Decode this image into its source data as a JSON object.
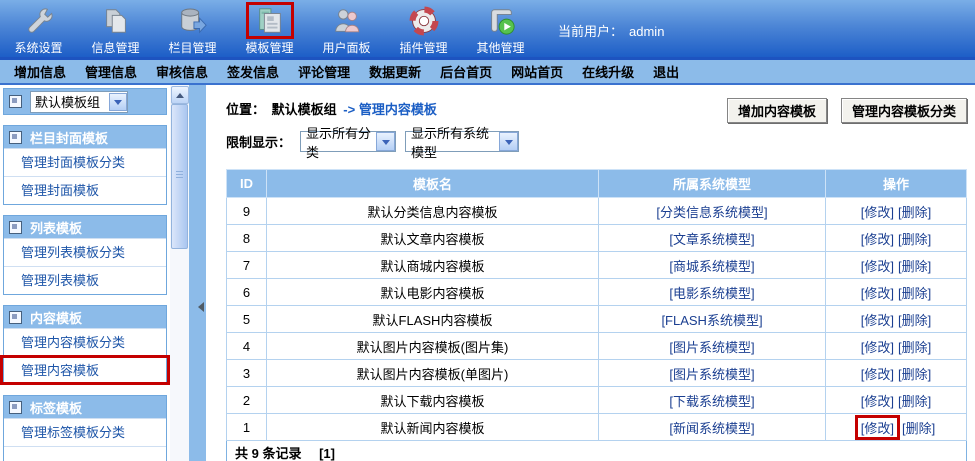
{
  "colors": {
    "accent_red": "#C40000",
    "panel_blue": "#8CBBE9",
    "link_blue": "#1B3F91",
    "crumb_link_blue": "#1B5EC4",
    "header_top": "#7AAEE7",
    "header_bottom": "#1D5EC7"
  },
  "header": {
    "current_user_label": "当前用户：",
    "current_user": "admin",
    "toolbar": [
      {
        "label": "系统设置",
        "icon": "wrench-icon",
        "highlighted": false
      },
      {
        "label": "信息管理",
        "icon": "documents-icon",
        "highlighted": false
      },
      {
        "label": "栏目管理",
        "icon": "database-icon",
        "highlighted": false
      },
      {
        "label": "模板管理",
        "icon": "template-icon",
        "highlighted": true
      },
      {
        "label": "用户面板",
        "icon": "users-icon",
        "highlighted": false
      },
      {
        "label": "插件管理",
        "icon": "lifebuoy-icon",
        "highlighted": false
      },
      {
        "label": "其他管理",
        "icon": "scroll-play-icon",
        "highlighted": false
      }
    ]
  },
  "menubar": [
    "增加信息",
    "管理信息",
    "审核信息",
    "签发信息",
    "评论管理",
    "数据更新",
    "后台首页",
    "网站首页",
    "在线升级",
    "退出"
  ],
  "sidebar": {
    "group_select": "默认模板组",
    "sections": [
      {
        "title": "栏目封面模板",
        "items": [
          {
            "label": "管理封面模板分类",
            "highlighted": false
          },
          {
            "label": "管理封面模板",
            "highlighted": false
          }
        ]
      },
      {
        "title": "列表模板",
        "items": [
          {
            "label": "管理列表模板分类",
            "highlighted": false
          },
          {
            "label": "管理列表模板",
            "highlighted": false
          }
        ]
      },
      {
        "title": "内容模板",
        "items": [
          {
            "label": "管理内容模板分类",
            "highlighted": false
          },
          {
            "label": "管理内容模板",
            "highlighted": true
          }
        ]
      },
      {
        "title": "标签模板",
        "items": [
          {
            "label": "管理标签模板分类",
            "highlighted": false
          }
        ]
      }
    ]
  },
  "main": {
    "breadcrumb": {
      "label": "位置：",
      "group": "默认模板组",
      "link": "-> 管理内容模板"
    },
    "buttons": [
      "增加内容模板",
      "管理内容模板分类"
    ],
    "filter": {
      "label": "限制显示：",
      "options": [
        "显示所有分类",
        "显示所有系统模型"
      ]
    },
    "table": {
      "columns": [
        "ID",
        "模板名",
        "所属系统模型",
        "操作"
      ],
      "ops_edit": "[修改]",
      "ops_delete": "[删除]",
      "rows": [
        {
          "id": "9",
          "name": "默认分类信息内容模板",
          "model": "[分类信息系统模型]",
          "edit_highlighted": false
        },
        {
          "id": "8",
          "name": "默认文章内容模板",
          "model": "[文章系统模型]",
          "edit_highlighted": false
        },
        {
          "id": "7",
          "name": "默认商城内容模板",
          "model": "[商城系统模型]",
          "edit_highlighted": false
        },
        {
          "id": "6",
          "name": "默认电影内容模板",
          "model": "[电影系统模型]",
          "edit_highlighted": false
        },
        {
          "id": "5",
          "name": "默认FLASH内容模板",
          "model": "[FLASH系统模型]",
          "edit_highlighted": false
        },
        {
          "id": "4",
          "name": "默认图片内容模板(图片集)",
          "model": "[图片系统模型]",
          "edit_highlighted": false
        },
        {
          "id": "3",
          "name": "默认图片内容模板(单图片)",
          "model": "[图片系统模型]",
          "edit_highlighted": false
        },
        {
          "id": "2",
          "name": "默认下载内容模板",
          "model": "[下载系统模型]",
          "edit_highlighted": false
        },
        {
          "id": "1",
          "name": "默认新闻内容模板",
          "model": "[新闻系统模型]",
          "edit_highlighted": true
        }
      ],
      "footer": {
        "count": "共 9 条记录",
        "page": "[1]"
      }
    }
  }
}
